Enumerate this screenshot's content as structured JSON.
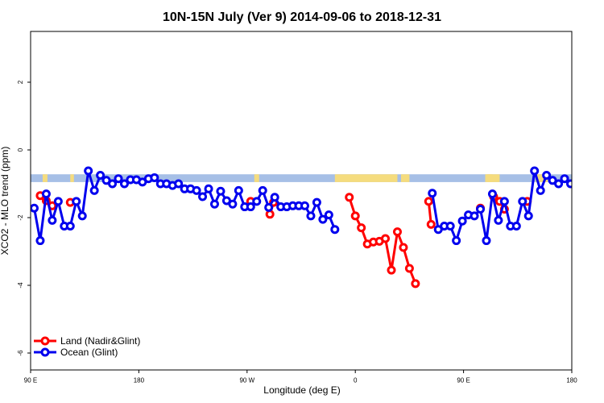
{
  "chart_data": {
    "type": "line",
    "title": "10N-15N July (Ver 9)   2014-09-06 to 2018-12-31",
    "xlabel": "Longitude (deg E)",
    "ylabel": "XCO2 - MLO trend (ppm)",
    "x_ticks": [
      {
        "value": 90,
        "label": "90 E"
      },
      {
        "value": 180,
        "label": "180"
      },
      {
        "value": 270,
        "label": "90 W"
      },
      {
        "value": 360,
        "label": "0"
      },
      {
        "value": 450,
        "label": "90 E"
      },
      {
        "value": 540,
        "label": "180"
      }
    ],
    "y_ticks": [
      {
        "value": 2,
        "label": "2"
      },
      {
        "value": 0,
        "label": "0"
      },
      {
        "value": -2,
        "label": "-2"
      },
      {
        "value": -4,
        "label": "-4"
      },
      {
        "value": -6,
        "label": "-6"
      }
    ],
    "xlim": [
      90,
      540
    ],
    "ylim": [
      -6.5,
      3.5
    ],
    "grid": false,
    "legend_position": "bottom-left",
    "band": {
      "y_top": -0.72,
      "y_bottom": -0.95,
      "ocean_color": "#a6bfe6",
      "land_color": "#f5dc7e"
    },
    "land_segments": [
      [
        100,
        104
      ],
      [
        123,
        126
      ],
      [
        276,
        280
      ],
      [
        343,
        395
      ],
      [
        398,
        405
      ],
      [
        468,
        474
      ],
      [
        470,
        480
      ],
      [
        510,
        517
      ],
      [
        515,
        520
      ]
    ],
    "series": [
      {
        "name": "Land (Nadir&Glint)",
        "color": "#ff0000",
        "segments": [
          [
            [
              98,
              -1.35
            ],
            [
              103,
              -1.5
            ],
            [
              108,
              -1.65
            ]
          ],
          [
            [
              123,
              -1.55
            ]
          ],
          [
            [
              273,
              -1.52
            ]
          ],
          [
            [
              289,
              -1.9
            ],
            [
              292,
              -1.55
            ]
          ],
          [
            [
              355,
              -1.4
            ],
            [
              360,
              -1.95
            ],
            [
              365,
              -2.3
            ],
            [
              370,
              -2.78
            ],
            [
              375,
              -2.72
            ],
            [
              380,
              -2.7
            ],
            [
              385,
              -2.62
            ],
            [
              390,
              -3.55
            ],
            [
              395,
              -2.42
            ],
            [
              400,
              -2.88
            ],
            [
              405,
              -3.5
            ],
            [
              410,
              -3.95
            ]
          ],
          [
            [
              421,
              -1.52
            ],
            [
              423,
              -2.2
            ]
          ],
          [
            [
              464,
              -1.72
            ]
          ],
          [
            [
              475,
              -1.38
            ],
            [
              480,
              -1.52
            ],
            [
              484,
              -1.75
            ]
          ],
          [
            [
              503,
              -1.52
            ]
          ]
        ]
      },
      {
        "name": "Ocean (Glint)",
        "color": "#0000ee",
        "segments": [
          [
            [
              93,
              -1.72
            ],
            [
              98,
              -2.68
            ],
            [
              103,
              -1.3
            ],
            [
              108,
              -2.08
            ],
            [
              113,
              -1.52
            ],
            [
              118,
              -2.25
            ],
            [
              123,
              -2.25
            ],
            [
              128,
              -1.52
            ],
            [
              133,
              -1.95
            ],
            [
              138,
              -0.62
            ],
            [
              143,
              -1.2
            ],
            [
              148,
              -0.75
            ],
            [
              153,
              -0.9
            ],
            [
              158,
              -1.0
            ],
            [
              163,
              -0.85
            ],
            [
              168,
              -1.0
            ],
            [
              173,
              -0.88
            ],
            [
              178,
              -0.88
            ],
            [
              183,
              -0.95
            ],
            [
              188,
              -0.85
            ],
            [
              193,
              -0.82
            ],
            [
              198,
              -1.0
            ],
            [
              203,
              -1.0
            ],
            [
              208,
              -1.05
            ],
            [
              213,
              -1.0
            ],
            [
              218,
              -1.15
            ],
            [
              223,
              -1.15
            ],
            [
              228,
              -1.2
            ],
            [
              233,
              -1.38
            ],
            [
              238,
              -1.15
            ],
            [
              243,
              -1.6
            ],
            [
              248,
              -1.22
            ],
            [
              253,
              -1.5
            ],
            [
              258,
              -1.6
            ],
            [
              263,
              -1.2
            ],
            [
              268,
              -1.68
            ],
            [
              273,
              -1.68
            ],
            [
              278,
              -1.52
            ],
            [
              283,
              -1.2
            ],
            [
              288,
              -1.7
            ],
            [
              293,
              -1.4
            ],
            [
              298,
              -1.68
            ],
            [
              303,
              -1.68
            ],
            [
              308,
              -1.65
            ],
            [
              313,
              -1.65
            ],
            [
              318,
              -1.65
            ],
            [
              323,
              -1.95
            ],
            [
              328,
              -1.55
            ],
            [
              333,
              -2.05
            ],
            [
              338,
              -1.92
            ],
            [
              343,
              -2.35
            ]
          ],
          [
            [
              424,
              -1.28
            ],
            [
              429,
              -2.35
            ],
            [
              434,
              -2.25
            ],
            [
              439,
              -2.25
            ],
            [
              444,
              -2.68
            ],
            [
              449,
              -2.1
            ],
            [
              454,
              -1.92
            ],
            [
              459,
              -1.95
            ],
            [
              464,
              -1.75
            ],
            [
              469,
              -2.68
            ],
            [
              474,
              -1.3
            ],
            [
              479,
              -2.08
            ],
            [
              484,
              -1.52
            ],
            [
              489,
              -2.25
            ],
            [
              494,
              -2.25
            ],
            [
              499,
              -1.52
            ],
            [
              504,
              -1.95
            ],
            [
              509,
              -0.62
            ],
            [
              514,
              -1.2
            ],
            [
              519,
              -0.75
            ],
            [
              524,
              -0.9
            ],
            [
              529,
              -1.0
            ],
            [
              534,
              -0.85
            ],
            [
              539,
              -1.0
            ],
            [
              544,
              -0.88
            ],
            [
              549,
              -0.88
            ]
          ]
        ]
      }
    ]
  }
}
